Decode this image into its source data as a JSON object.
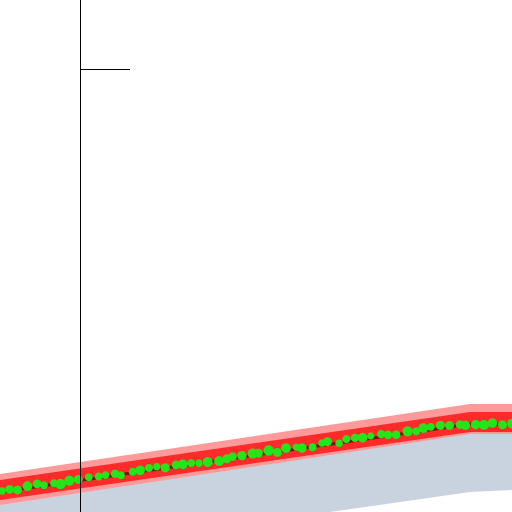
{
  "colors": {
    "background": "#ffffff",
    "ground": "#c9d3e0",
    "band_glow": "#ff9a9a",
    "band_core": "#ff2a2a",
    "band_dark": "#7a1010",
    "dots": "#22e51a",
    "axis": "#000000"
  },
  "dots": {
    "count_visible": 60,
    "shape": "circle"
  }
}
